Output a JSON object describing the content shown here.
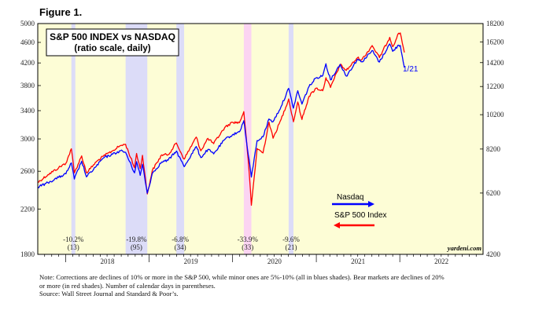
{
  "figure_label": "Figure 1.",
  "footnote": {
    "line1": "Note: Corrections are declines of 10% or more in the S&P 500, while minor ones are 5%-10% (all in blues shades). Bear markets are declines of 20%",
    "line2": "or more (in red shades). Number of calendar days in parentheses.",
    "line3": "Source: Wall Street Journal and Standard & Poor’s."
  },
  "colors": {
    "plot_bg": "#fdfdd6",
    "sp500": "#ff0000",
    "nasdaq": "#0000ff",
    "correction_shade": "#dcdcf8",
    "bear_shade": "#fbd4f2"
  },
  "chart_data": {
    "type": "line",
    "title": "S&P 500 INDEX vs NASDAQ",
    "subtitle": "(ratio scale, daily)",
    "watermark": "yardeni.com",
    "scale": "log",
    "x_range": [
      "2017-09-01",
      "2022-12-31"
    ],
    "x_ticks": [
      "2018",
      "2019",
      "2020",
      "2021",
      "2022"
    ],
    "left_axis": {
      "series": "S&P 500 Index",
      "range": [
        1800,
        5000
      ],
      "ticks": [
        "1800",
        "2200",
        "2600",
        "3000",
        "3400",
        "3800",
        "4200",
        "4600",
        "5000"
      ]
    },
    "right_axis": {
      "series": "Nasdaq",
      "range": [
        4200,
        18200
      ],
      "ticks": [
        "4200",
        "6200",
        "8200",
        "10200",
        "12200",
        "14200",
        "16200",
        "18200"
      ]
    },
    "grid": false,
    "legend": {
      "placement": "lower-right",
      "entries": [
        "Nasdaq",
        "S&P 500 Index"
      ]
    },
    "end_label": "1/21",
    "shaded_periods": [
      {
        "start": "2018-01-26",
        "end": "2018-02-08",
        "type": "correction",
        "label": "-10.2%",
        "days": "(13)"
      },
      {
        "start": "2018-09-20",
        "end": "2018-12-24",
        "type": "correction",
        "label": "-19.8%",
        "days": "(95)"
      },
      {
        "start": "2019-04-30",
        "end": "2019-06-03",
        "type": "correction",
        "label": "-6.8%",
        "days": "(34)"
      },
      {
        "start": "2020-02-19",
        "end": "2020-03-23",
        "type": "bear",
        "label": "-33.9%",
        "days": "(33)"
      },
      {
        "start": "2020-09-02",
        "end": "2020-09-23",
        "type": "correction",
        "label": "-9.6%",
        "days": "(21)"
      }
    ],
    "series": [
      {
        "name": "S&P 500 Index",
        "axis": "left",
        "points": [
          [
            "2017-09-01",
            2475
          ],
          [
            "2017-10-15",
            2560
          ],
          [
            "2017-12-01",
            2640
          ],
          [
            "2018-01-02",
            2695
          ],
          [
            "2018-01-26",
            2872
          ],
          [
            "2018-02-08",
            2581
          ],
          [
            "2018-03-12",
            2783
          ],
          [
            "2018-04-02",
            2582
          ],
          [
            "2018-05-15",
            2711
          ],
          [
            "2018-06-15",
            2779
          ],
          [
            "2018-07-25",
            2846
          ],
          [
            "2018-08-29",
            2914
          ],
          [
            "2018-09-20",
            2930
          ],
          [
            "2018-10-29",
            2641
          ],
          [
            "2018-11-07",
            2813
          ],
          [
            "2018-11-23",
            2632
          ],
          [
            "2018-12-03",
            2790
          ],
          [
            "2018-12-24",
            2351
          ],
          [
            "2019-01-15",
            2610
          ],
          [
            "2019-02-25",
            2796
          ],
          [
            "2019-03-25",
            2798
          ],
          [
            "2019-04-30",
            2946
          ],
          [
            "2019-06-03",
            2744
          ],
          [
            "2019-07-26",
            3025
          ],
          [
            "2019-08-15",
            2847
          ],
          [
            "2019-09-15",
            3007
          ],
          [
            "2019-10-10",
            2938
          ],
          [
            "2019-11-27",
            3153
          ],
          [
            "2019-12-31",
            3231
          ],
          [
            "2020-01-31",
            3225
          ],
          [
            "2020-02-19",
            3386
          ],
          [
            "2020-03-09",
            2746
          ],
          [
            "2020-03-23",
            2237
          ],
          [
            "2020-04-17",
            2875
          ],
          [
            "2020-05-13",
            2820
          ],
          [
            "2020-06-08",
            3232
          ],
          [
            "2020-06-26",
            3009
          ],
          [
            "2020-07-31",
            3271
          ],
          [
            "2020-09-02",
            3580
          ],
          [
            "2020-09-23",
            3237
          ],
          [
            "2020-10-12",
            3534
          ],
          [
            "2020-10-30",
            3270
          ],
          [
            "2020-11-30",
            3622
          ],
          [
            "2020-12-31",
            3756
          ],
          [
            "2021-01-29",
            3714
          ],
          [
            "2021-02-12",
            3934
          ],
          [
            "2021-03-04",
            3768
          ],
          [
            "2021-04-15",
            4170
          ],
          [
            "2021-05-12",
            4063
          ],
          [
            "2021-06-30",
            4297
          ],
          [
            "2021-07-19",
            4258
          ],
          [
            "2021-08-31",
            4522
          ],
          [
            "2021-09-02",
            4537
          ],
          [
            "2021-10-04",
            4300
          ],
          [
            "2021-11-18",
            4704
          ],
          [
            "2021-12-01",
            4513
          ],
          [
            "2021-12-27",
            4791
          ],
          [
            "2022-01-03",
            4797
          ],
          [
            "2022-01-21",
            4398
          ]
        ]
      },
      {
        "name": "Nasdaq",
        "axis": "right",
        "points": [
          [
            "2017-09-01",
            6435
          ],
          [
            "2017-10-15",
            6624
          ],
          [
            "2017-12-01",
            6848
          ],
          [
            "2018-01-02",
            7006
          ],
          [
            "2018-01-26",
            7505
          ],
          [
            "2018-02-08",
            6777
          ],
          [
            "2018-03-12",
            7588
          ],
          [
            "2018-04-02",
            6870
          ],
          [
            "2018-05-15",
            7351
          ],
          [
            "2018-06-15",
            7746
          ],
          [
            "2018-07-25",
            7932
          ],
          [
            "2018-08-29",
            8109
          ],
          [
            "2018-09-20",
            8028
          ],
          [
            "2018-10-29",
            7050
          ],
          [
            "2018-11-07",
            7570
          ],
          [
            "2018-11-23",
            6938
          ],
          [
            "2018-12-03",
            7441
          ],
          [
            "2018-12-24",
            6193
          ],
          [
            "2019-01-15",
            7023
          ],
          [
            "2019-02-25",
            7554
          ],
          [
            "2019-03-25",
            7637
          ],
          [
            "2019-04-30",
            8095
          ],
          [
            "2019-06-03",
            7333
          ],
          [
            "2019-07-26",
            8330
          ],
          [
            "2019-08-15",
            7766
          ],
          [
            "2019-09-15",
            8176
          ],
          [
            "2019-10-10",
            7950
          ],
          [
            "2019-11-27",
            8705
          ],
          [
            "2019-12-31",
            8973
          ],
          [
            "2020-01-31",
            9151
          ],
          [
            "2020-02-19",
            9817
          ],
          [
            "2020-03-09",
            7950
          ],
          [
            "2020-03-23",
            6861
          ],
          [
            "2020-04-17",
            8650
          ],
          [
            "2020-05-13",
            8863
          ],
          [
            "2020-06-08",
            9924
          ],
          [
            "2020-06-26",
            9757
          ],
          [
            "2020-07-31",
            10745
          ],
          [
            "2020-09-02",
            12056
          ],
          [
            "2020-09-23",
            10633
          ],
          [
            "2020-10-12",
            11876
          ],
          [
            "2020-10-30",
            10912
          ],
          [
            "2020-11-30",
            12199
          ],
          [
            "2020-12-31",
            12888
          ],
          [
            "2021-01-29",
            13070
          ],
          [
            "2021-02-12",
            14095
          ],
          [
            "2021-03-04",
            12723
          ],
          [
            "2021-04-15",
            14038
          ],
          [
            "2021-05-12",
            13031
          ],
          [
            "2021-06-30",
            14504
          ],
          [
            "2021-07-19",
            14275
          ],
          [
            "2021-08-31",
            15259
          ],
          [
            "2021-09-02",
            15331
          ],
          [
            "2021-10-04",
            14255
          ],
          [
            "2021-11-18",
            15993
          ],
          [
            "2021-12-01",
            15254
          ],
          [
            "2021-12-27",
            15871
          ],
          [
            "2022-01-03",
            15832
          ],
          [
            "2022-01-21",
            13769
          ]
        ]
      }
    ]
  }
}
